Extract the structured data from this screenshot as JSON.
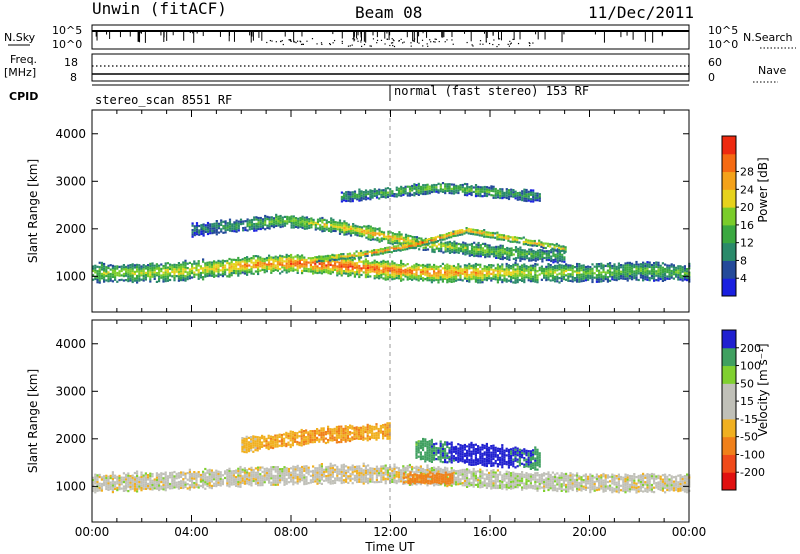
{
  "header": {
    "station": "Unwin (fitACF)",
    "beam": "Beam 08",
    "date": "11/Dec/2011"
  },
  "strip_labels": {
    "nsky": "N.Sky",
    "nsearch": "N.Search",
    "freq_line1": "Freq.",
    "freq_line2": "[MHz]",
    "nave": "Nave",
    "cpid": "CPID"
  },
  "strip_ticks": {
    "nsky_left": [
      "10^5",
      "10^0"
    ],
    "nsky_right": [
      "10^5",
      "10^0"
    ],
    "freq_left": [
      "18",
      "8"
    ],
    "nave_right": [
      "60",
      "0"
    ]
  },
  "cpid_segments": [
    {
      "start_hour": 0,
      "label": "stereo_scan 8551 RF"
    },
    {
      "start_hour": 12,
      "label": "normal (fast stereo) 153 RF"
    }
  ],
  "x_axis": {
    "label": "Time UT",
    "ticks": [
      "00:00",
      "04:00",
      "08:00",
      "12:00",
      "16:00",
      "20:00",
      "00:00"
    ]
  },
  "colors": {
    "power_scale": [
      "#1a20e0",
      "#244a9a",
      "#2a8a6a",
      "#3aa840",
      "#7acc2a",
      "#e6d21c",
      "#f4a21a",
      "#f56a12",
      "#ee2a10"
    ],
    "velocity_scale": [
      "#e01010",
      "#f04a1a",
      "#f0801a",
      "#f0b020",
      "#c0c0b8",
      "#c0c0b8",
      "#80d030",
      "#40a060",
      "#2020d0"
    ],
    "axis": "#000000"
  },
  "chart_data": [
    {
      "type": "heatmap",
      "name": "power",
      "ylabel": "Slant Range [km]",
      "ylim": [
        250,
        4500
      ],
      "y_ticks": [
        1000,
        2000,
        3000,
        4000
      ],
      "xlim_hours": [
        0,
        24
      ],
      "colorbar": {
        "label": "Power [dB]",
        "range": [
          0,
          32
        ],
        "ticks": [
          "4",
          "8",
          "12",
          "16",
          "20",
          "24",
          "28"
        ]
      },
      "bands": [
        {
          "t_start": 0,
          "t_end": 24,
          "center_km": [
            1100,
            1100,
            1150,
            1250,
            1300,
            1250,
            1150,
            1100,
            1100,
            1100,
            1100,
            1150,
            1100
          ],
          "width_km": 350,
          "peak_db": [
            16,
            18,
            20,
            24,
            28,
            30,
            28,
            26,
            22,
            18,
            16,
            14,
            14
          ]
        },
        {
          "t_start": 4,
          "t_end": 19,
          "center_km": [
            2000,
            2100,
            2200,
            2100,
            1900,
            1700,
            1600,
            1500,
            1450
          ],
          "width_km": 250,
          "peak_db": [
            8,
            12,
            16,
            20,
            24,
            20,
            16,
            14,
            12
          ]
        },
        {
          "t_start": 10,
          "t_end": 18,
          "center_km": [
            2700,
            2800,
            2900,
            2800,
            2700
          ],
          "width_km": 200,
          "peak_db": [
            10,
            14,
            16,
            14,
            10
          ]
        },
        {
          "t_start": 9,
          "t_end": 19,
          "center_km": [
            1400,
            1500,
            1700,
            2000,
            1800,
            1600
          ],
          "width_km": 120,
          "peak_db": [
            20,
            24,
            28,
            26,
            24,
            20
          ]
        }
      ]
    },
    {
      "type": "heatmap",
      "name": "velocity",
      "ylabel": "Slant Range [km]",
      "ylim": [
        250,
        4500
      ],
      "y_ticks": [
        1000,
        2000,
        3000,
        4000
      ],
      "xlim_hours": [
        0,
        24
      ],
      "colorbar": {
        "label": "Velocity [m s⁻¹]",
        "range": [
          -250,
          250
        ],
        "ticks": [
          "200",
          "100",
          "50",
          "15",
          "-15",
          "-50",
          "-100",
          "-200"
        ]
      },
      "bands": [
        {
          "t_start": 0,
          "t_end": 24,
          "center_km": [
            1100,
            1150,
            1250,
            1300,
            1250,
            1150,
            1100,
            1100
          ],
          "width_km": 350,
          "velocity": [
            0,
            0,
            0,
            -5,
            0,
            5,
            0,
            0
          ]
        },
        {
          "t_start": 6,
          "t_end": 12,
          "center_km": [
            1900,
            2100,
            2200
          ],
          "width_km": 300,
          "velocity": [
            -30,
            -50,
            -40
          ]
        },
        {
          "t_start": 13,
          "t_end": 18,
          "center_km": [
            1800,
            1700,
            1600
          ],
          "width_km": 400,
          "velocity": [
            60,
            150,
            80
          ]
        },
        {
          "t_start": 12.5,
          "t_end": 14.5,
          "center_km": [
            1200,
            1200
          ],
          "width_km": 200,
          "velocity": [
            -60,
            -80
          ]
        }
      ]
    }
  ]
}
